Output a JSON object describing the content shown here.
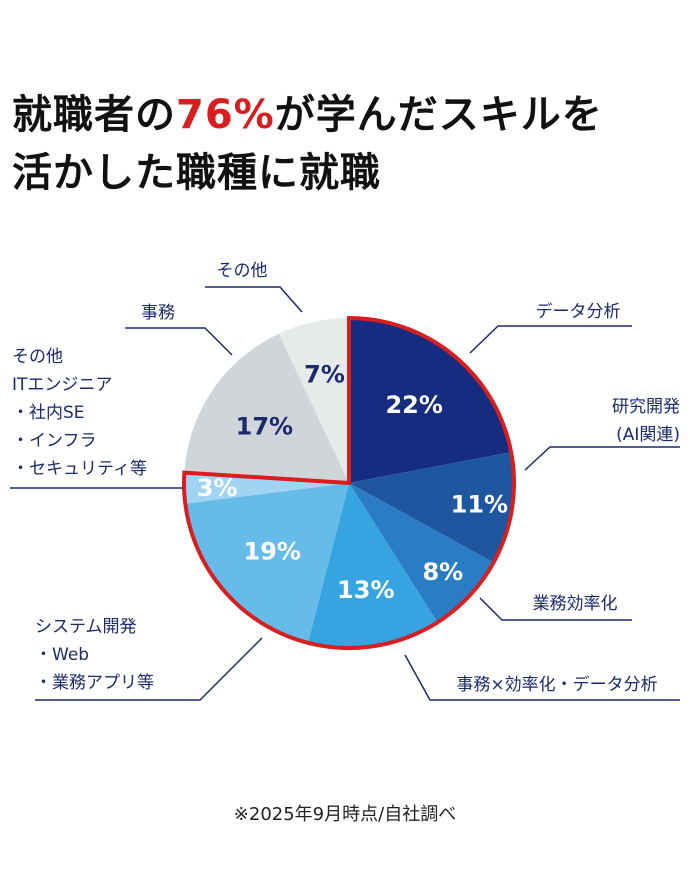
{
  "title": {
    "line1_pre": "就職者の",
    "line1_highlight": "76%",
    "line1_post": "が学んだスキルを",
    "line2": "活かした職種に就職"
  },
  "note": "※2025年9月時点/自社調べ",
  "colors": {
    "accent": "#d81e1e",
    "label": "#1a2a6c"
  },
  "chart_data": {
    "type": "pie",
    "title": "就職者の76%が学んだスキルを活かした職種に就職",
    "start": "top, clockwise",
    "highlight_group": "76%",
    "slices": [
      {
        "label_lines": [
          "データ分析"
        ],
        "value": 22,
        "pct": "22%",
        "color": "#152c80",
        "text": "#ffffff",
        "highlight": true
      },
      {
        "label_lines": [
          "研究開発",
          "(AI関連)"
        ],
        "value": 11,
        "pct": "11%",
        "color": "#1e56a0",
        "text": "#ffffff",
        "highlight": true
      },
      {
        "label_lines": [
          "業務効率化"
        ],
        "value": 8,
        "pct": "8%",
        "color": "#2a7cc4",
        "text": "#ffffff",
        "highlight": true
      },
      {
        "label_lines": [
          "事務×効率化・データ分析"
        ],
        "value": 13,
        "pct": "13%",
        "color": "#35a4e0",
        "text": "#ffffff",
        "highlight": true
      },
      {
        "label_lines": [
          "システム開発",
          "・Web",
          "・業務アプリ等"
        ],
        "value": 19,
        "pct": "19%",
        "color": "#66bbe8",
        "text": "#ffffff",
        "highlight": true
      },
      {
        "label_lines": [
          "その他",
          "ITエンジニア",
          "・社内SE",
          "・インフラ",
          "・セキュリティ等"
        ],
        "value": 3,
        "pct": "3%",
        "color": "#a0d4f2",
        "text": "#ffffff",
        "highlight": true
      },
      {
        "label_lines": [
          "事務"
        ],
        "value": 17,
        "pct": "17%",
        "color": "#cfd5d8",
        "text": "#1a2a6c",
        "highlight": false
      },
      {
        "label_lines": [
          "その他"
        ],
        "value": 7,
        "pct": "7%",
        "color": "#e6eaeb",
        "text": "#1a2a6c",
        "highlight": false
      }
    ]
  }
}
